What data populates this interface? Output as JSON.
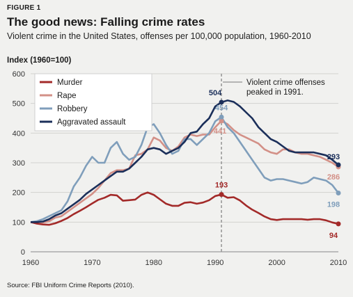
{
  "figure_label": "FIGURE 1",
  "source": "Source: FBI Uniform Crime Reports (2010).",
  "chart_data": {
    "type": "line",
    "title": "The good news: Falling crime rates",
    "subtitle": "Violent crime in the United States, offenses per 100,000 population, 1960-2010",
    "ylabel": "Index (1960=100)",
    "xlim": [
      1960,
      2010
    ],
    "ylim": [
      0,
      600
    ],
    "x_ticks": [
      1960,
      1970,
      1980,
      1990,
      2000,
      2010
    ],
    "y_ticks": [
      0,
      100,
      200,
      300,
      400,
      500,
      600
    ],
    "grid": true,
    "legend_placement": "top-left",
    "x": [
      1960,
      1961,
      1962,
      1963,
      1964,
      1965,
      1966,
      1967,
      1968,
      1969,
      1970,
      1971,
      1972,
      1973,
      1974,
      1975,
      1976,
      1977,
      1978,
      1979,
      1980,
      1981,
      1982,
      1983,
      1984,
      1985,
      1986,
      1987,
      1988,
      1989,
      1990,
      1991,
      1992,
      1993,
      1994,
      1995,
      1996,
      1997,
      1998,
      1999,
      2000,
      2001,
      2002,
      2003,
      2004,
      2005,
      2006,
      2007,
      2008,
      2009,
      2010
    ],
    "series": [
      {
        "name": "Murder",
        "color": "#a32a29",
        "values": [
          100,
          95,
          92,
          91,
          96,
          104,
          114,
          127,
          138,
          150,
          163,
          175,
          182,
          192,
          190,
          172,
          174,
          176,
          192,
          200,
          192,
          177,
          162,
          155,
          155,
          165,
          167,
          162,
          166,
          174,
          188,
          193,
          182,
          184,
          173,
          156,
          142,
          131,
          119,
          110,
          107,
          110,
          110,
          110,
          110,
          108,
          110,
          110,
          106,
          99,
          94
        ]
      },
      {
        "name": "Rape",
        "color": "#d39087",
        "values": [
          100,
          98,
          99,
          103,
          115,
          120,
          135,
          150,
          165,
          180,
          195,
          215,
          240,
          265,
          275,
          275,
          280,
          325,
          330,
          345,
          385,
          375,
          350,
          340,
          355,
          385,
          395,
          390,
          395,
          395,
          420,
          441,
          430,
          410,
          395,
          385,
          375,
          365,
          345,
          335,
          330,
          345,
          345,
          335,
          330,
          330,
          325,
          320,
          310,
          300,
          286
        ]
      },
      {
        "name": "Robbery",
        "color": "#7f9ebb",
        "values": [
          100,
          103,
          110,
          120,
          130,
          140,
          170,
          220,
          250,
          290,
          320,
          300,
          300,
          350,
          370,
          330,
          310,
          320,
          360,
          420,
          430,
          400,
          360,
          330,
          340,
          380,
          380,
          360,
          380,
          400,
          440,
          454,
          420,
          400,
          370,
          340,
          310,
          280,
          250,
          240,
          245,
          245,
          240,
          235,
          230,
          235,
          250,
          245,
          240,
          225,
          198
        ]
      },
      {
        "name": "Aggravated assault",
        "color": "#1b2f5a",
        "values": [
          100,
          100,
          102,
          110,
          122,
          130,
          145,
          160,
          175,
          195,
          210,
          225,
          240,
          255,
          270,
          270,
          280,
          300,
          320,
          345,
          350,
          345,
          330,
          340,
          350,
          370,
          400,
          405,
          430,
          450,
          490,
          504,
          510,
          505,
          490,
          470,
          450,
          420,
          400,
          380,
          370,
          355,
          340,
          335,
          335,
          335,
          335,
          330,
          325,
          310,
          293
        ]
      }
    ],
    "data_labels": [
      {
        "text": "504",
        "series": "Aggravated assault",
        "x": 1991
      },
      {
        "text": "454",
        "series": "Robbery",
        "x": 1991
      },
      {
        "text": "441",
        "series": "Rape",
        "x": 1991
      },
      {
        "text": "193",
        "series": "Murder",
        "x": 1991
      },
      {
        "text": "293",
        "series": "Aggravated assault",
        "x": 2010
      },
      {
        "text": "286",
        "series": "Rape",
        "x": 2010
      },
      {
        "text": "198",
        "series": "Robbery",
        "x": 2010
      },
      {
        "text": "94",
        "series": "Murder",
        "x": 2010
      }
    ],
    "annotation": {
      "x": 1991,
      "lines": [
        "Violent crime offenses",
        "peaked in 1991."
      ]
    }
  }
}
